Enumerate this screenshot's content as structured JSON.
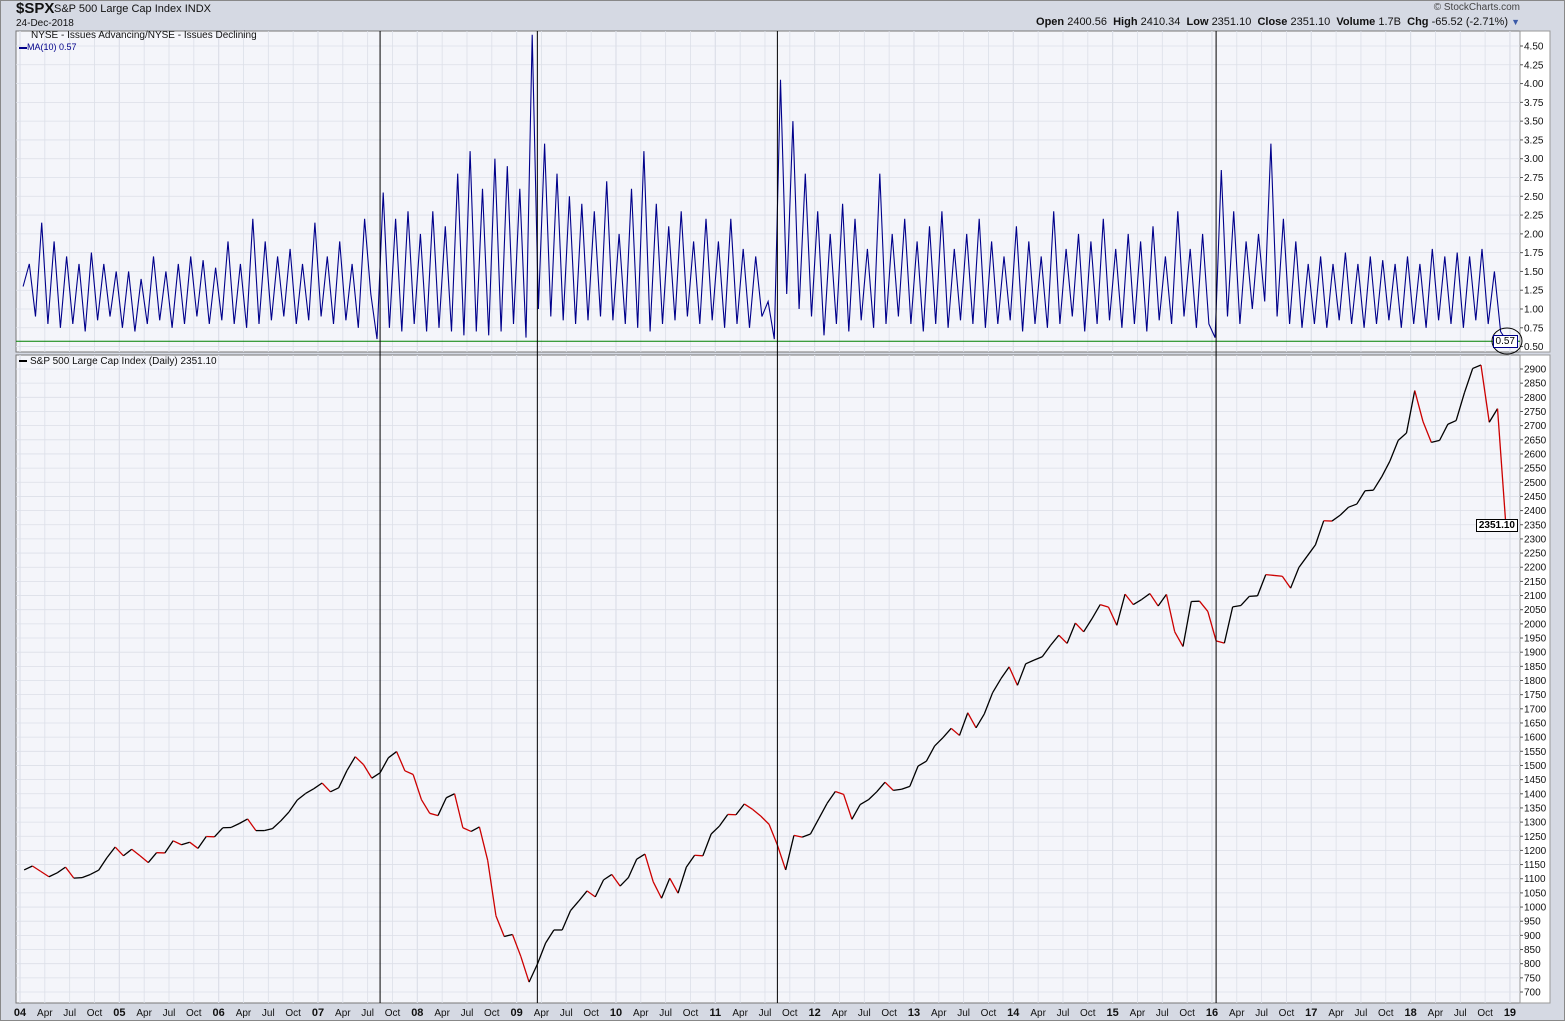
{
  "header": {
    "symbol": "$SPX",
    "name": "S&P 500 Large Cap Index",
    "exchange": "INDX",
    "date": "24-Dec-2018",
    "copyright": "© StockCharts.com",
    "quote": {
      "open_label": "Open",
      "open": "2400.56",
      "high_label": "High",
      "high": "2410.34",
      "low_label": "Low",
      "low": "2351.10",
      "close_label": "Close",
      "close": "2351.10",
      "volume_label": "Volume",
      "volume": "1.7B",
      "chg_label": "Chg",
      "chg": "-65.52 (-2.71%)"
    }
  },
  "upper_panel": {
    "title": "NYSE - Issues Advancing/NYSE - Issues Declining",
    "legend": "MA(10) 0.57",
    "last_value_label": "0.57",
    "reference_line": 0.57
  },
  "lower_panel": {
    "legend": "S&P 500 Large Cap Index (Daily) 2351.10",
    "last_value_label": "2351.10"
  },
  "colors": {
    "breadth_line": "#00008b",
    "price_up": "#000000",
    "price_down": "#cc0000",
    "reference_line": "#008000",
    "marker_lines": "#000000",
    "plot_bg": "#f4f5fa",
    "grid": "#dcdfe8"
  },
  "chart_data": [
    {
      "type": "line",
      "title": "NYSE - Issues Advancing/NYSE - Issues Declining",
      "series_name": "MA(10)",
      "ylim": [
        0.5,
        4.6
      ],
      "y_ticks": [
        "0.50",
        "0.75",
        "1.00",
        "1.25",
        "1.50",
        "1.75",
        "2.00",
        "2.25",
        "2.50",
        "2.75",
        "3.00",
        "3.25",
        "3.50",
        "3.75",
        "4.00",
        "4.25",
        "4.50"
      ],
      "samples_per_year": 16,
      "start_year": 2004,
      "values": [
        1.3,
        1.6,
        0.9,
        2.15,
        0.8,
        1.9,
        0.75,
        1.7,
        0.8,
        1.6,
        0.7,
        1.75,
        0.85,
        1.6,
        0.9,
        1.5,
        0.75,
        1.5,
        0.7,
        1.4,
        0.8,
        1.7,
        0.85,
        1.5,
        0.75,
        1.6,
        0.8,
        1.7,
        0.9,
        1.65,
        0.8,
        1.55,
        0.85,
        1.9,
        0.8,
        1.6,
        0.75,
        2.2,
        0.8,
        1.9,
        0.85,
        1.7,
        0.9,
        1.8,
        0.8,
        1.6,
        0.85,
        2.15,
        0.9,
        1.7,
        0.8,
        1.9,
        0.85,
        1.6,
        0.75,
        2.2,
        1.2,
        0.6,
        2.55,
        0.75,
        2.2,
        0.7,
        2.3,
        0.8,
        2.0,
        0.7,
        2.3,
        0.75,
        2.1,
        0.7,
        2.8,
        0.65,
        3.1,
        0.7,
        2.6,
        0.65,
        3.0,
        0.7,
        2.9,
        0.8,
        2.6,
        0.62,
        4.65,
        1.0,
        3.2,
        0.9,
        2.8,
        0.85,
        2.5,
        0.8,
        2.4,
        0.85,
        2.3,
        0.9,
        2.7,
        0.85,
        2.0,
        0.8,
        2.6,
        0.75,
        3.1,
        0.7,
        2.4,
        0.8,
        2.1,
        0.85,
        2.3,
        0.9,
        1.9,
        0.8,
        2.2,
        0.85,
        1.9,
        0.75,
        2.2,
        0.8,
        1.8,
        0.75,
        1.7,
        0.9,
        1.1,
        0.6,
        4.05,
        1.2,
        3.5,
        1.0,
        2.8,
        0.9,
        2.3,
        0.65,
        2.0,
        0.8,
        2.4,
        0.7,
        2.2,
        0.85,
        1.8,
        0.75,
        2.8,
        0.8,
        2.0,
        0.9,
        2.2,
        0.8,
        1.9,
        0.7,
        2.1,
        0.8,
        2.3,
        0.75,
        1.8,
        0.85,
        2.0,
        0.8,
        2.2,
        0.75,
        1.9,
        0.8,
        1.7,
        0.85,
        2.1,
        0.7,
        1.9,
        0.8,
        1.7,
        0.75,
        2.3,
        0.8,
        1.8,
        0.9,
        2.0,
        0.7,
        1.9,
        0.8,
        2.2,
        0.85,
        1.8,
        0.75,
        2.0,
        0.8,
        1.9,
        0.7,
        2.1,
        0.85,
        1.7,
        0.8,
        2.3,
        0.9,
        1.8,
        0.75,
        2.0,
        0.8,
        0.62,
        2.85,
        0.9,
        2.3,
        0.8,
        1.9,
        1.0,
        2.0,
        1.1,
        3.2,
        0.9,
        2.2,
        0.8,
        1.9,
        0.75,
        1.6,
        0.8,
        1.7,
        0.75,
        1.6,
        0.85,
        1.75,
        0.8,
        1.6,
        0.75,
        1.7,
        0.8,
        1.65,
        0.85,
        1.6,
        0.75,
        1.7,
        0.8,
        1.6,
        0.75,
        1.8,
        0.85,
        1.7,
        0.8,
        1.75,
        0.75,
        1.7,
        0.85,
        1.8,
        0.8,
        1.5,
        0.7,
        0.57
      ]
    },
    {
      "type": "line",
      "title": "S&P 500 Large Cap Index (Daily)",
      "ylim": [
        680,
        2920
      ],
      "y_ticks": [
        "700",
        "750",
        "800",
        "850",
        "900",
        "950",
        "1000",
        "1050",
        "1100",
        "1150",
        "1200",
        "1250",
        "1300",
        "1350",
        "1400",
        "1450",
        "1500",
        "1550",
        "1600",
        "1650",
        "1700",
        "1750",
        "1800",
        "1850",
        "1900",
        "1950",
        "2000",
        "2050",
        "2100",
        "2150",
        "2200",
        "2250",
        "2300",
        "2350",
        "2400",
        "2450",
        "2500",
        "2550",
        "2600",
        "2650",
        "2700",
        "2750",
        "2800",
        "2850",
        "2900"
      ],
      "samples_per_year": 12,
      "start_year": 2004,
      "values": [
        1131,
        1145,
        1126,
        1107,
        1121,
        1141,
        1102,
        1104,
        1115,
        1130,
        1174,
        1212,
        1181,
        1204,
        1181,
        1157,
        1192,
        1191,
        1234,
        1220,
        1229,
        1207,
        1249,
        1248,
        1280,
        1281,
        1295,
        1311,
        1270,
        1270,
        1277,
        1304,
        1336,
        1378,
        1401,
        1418,
        1438,
        1407,
        1421,
        1482,
        1531,
        1503,
        1455,
        1474,
        1527,
        1549,
        1481,
        1468,
        1379,
        1331,
        1323,
        1386,
        1400,
        1280,
        1267,
        1283,
        1165,
        969,
        896,
        903,
        826,
        735,
        798,
        873,
        919,
        919,
        987,
        1021,
        1057,
        1036,
        1096,
        1115,
        1074,
        1104,
        1169,
        1187,
        1089,
        1031,
        1102,
        1049,
        1141,
        1183,
        1181,
        1258,
        1286,
        1327,
        1326,
        1364,
        1345,
        1321,
        1292,
        1219,
        1131,
        1253,
        1247,
        1258,
        1312,
        1366,
        1408,
        1398,
        1310,
        1362,
        1379,
        1407,
        1441,
        1412,
        1416,
        1426,
        1498,
        1515,
        1569,
        1598,
        1631,
        1606,
        1686,
        1633,
        1682,
        1757,
        1806,
        1848,
        1783,
        1859,
        1872,
        1884,
        1924,
        1960,
        1931,
        2003,
        1972,
        2018,
        2068,
        2059,
        1995,
        2105,
        2068,
        2086,
        2107,
        2063,
        2104,
        1972,
        1920,
        2079,
        2080,
        2044,
        1940,
        1932,
        2060,
        2065,
        2097,
        2099,
        2174,
        2171,
        2168,
        2126,
        2199,
        2239,
        2279,
        2364,
        2363,
        2384,
        2412,
        2423,
        2470,
        2472,
        2519,
        2575,
        2648,
        2674,
        2824,
        2714,
        2641,
        2648,
        2705,
        2718,
        2816,
        2902,
        2914,
        2712,
        2760,
        2351.1
      ]
    }
  ],
  "vertical_markers": [
    "Aug 2007",
    "Mar 2009",
    "Aug 2011",
    "Jan 2016"
  ],
  "x_axis": {
    "ticks": [
      {
        "label": "04",
        "year": true
      },
      {
        "label": "Apr"
      },
      {
        "label": "Jul"
      },
      {
        "label": "Oct"
      },
      {
        "label": "05",
        "year": true
      },
      {
        "label": "Apr"
      },
      {
        "label": "Jul"
      },
      {
        "label": "Oct"
      },
      {
        "label": "06",
        "year": true
      },
      {
        "label": "Apr"
      },
      {
        "label": "Jul"
      },
      {
        "label": "Oct"
      },
      {
        "label": "07",
        "year": true
      },
      {
        "label": "Apr"
      },
      {
        "label": "Jul"
      },
      {
        "label": "Oct"
      },
      {
        "label": "08",
        "year": true
      },
      {
        "label": "Apr"
      },
      {
        "label": "Jul"
      },
      {
        "label": "Oct"
      },
      {
        "label": "09",
        "year": true
      },
      {
        "label": "Apr"
      },
      {
        "label": "Jul"
      },
      {
        "label": "Oct"
      },
      {
        "label": "10",
        "year": true
      },
      {
        "label": "Apr"
      },
      {
        "label": "Jul"
      },
      {
        "label": "Oct"
      },
      {
        "label": "11",
        "year": true
      },
      {
        "label": "Apr"
      },
      {
        "label": "Jul"
      },
      {
        "label": "Oct"
      },
      {
        "label": "12",
        "year": true
      },
      {
        "label": "Apr"
      },
      {
        "label": "Jul"
      },
      {
        "label": "Oct"
      },
      {
        "label": "13",
        "year": true
      },
      {
        "label": "Apr"
      },
      {
        "label": "Jul"
      },
      {
        "label": "Oct"
      },
      {
        "label": "14",
        "year": true
      },
      {
        "label": "Apr"
      },
      {
        "label": "Jul"
      },
      {
        "label": "Oct"
      },
      {
        "label": "15",
        "year": true
      },
      {
        "label": "Apr"
      },
      {
        "label": "Jul"
      },
      {
        "label": "Oct"
      },
      {
        "label": "16",
        "year": true
      },
      {
        "label": "Apr"
      },
      {
        "label": "Jul"
      },
      {
        "label": "Oct"
      },
      {
        "label": "17",
        "year": true
      },
      {
        "label": "Apr"
      },
      {
        "label": "Jul"
      },
      {
        "label": "Oct"
      },
      {
        "label": "18",
        "year": true
      },
      {
        "label": "Apr"
      },
      {
        "label": "Jul"
      },
      {
        "label": "Oct"
      },
      {
        "label": "19",
        "year": true
      }
    ]
  }
}
